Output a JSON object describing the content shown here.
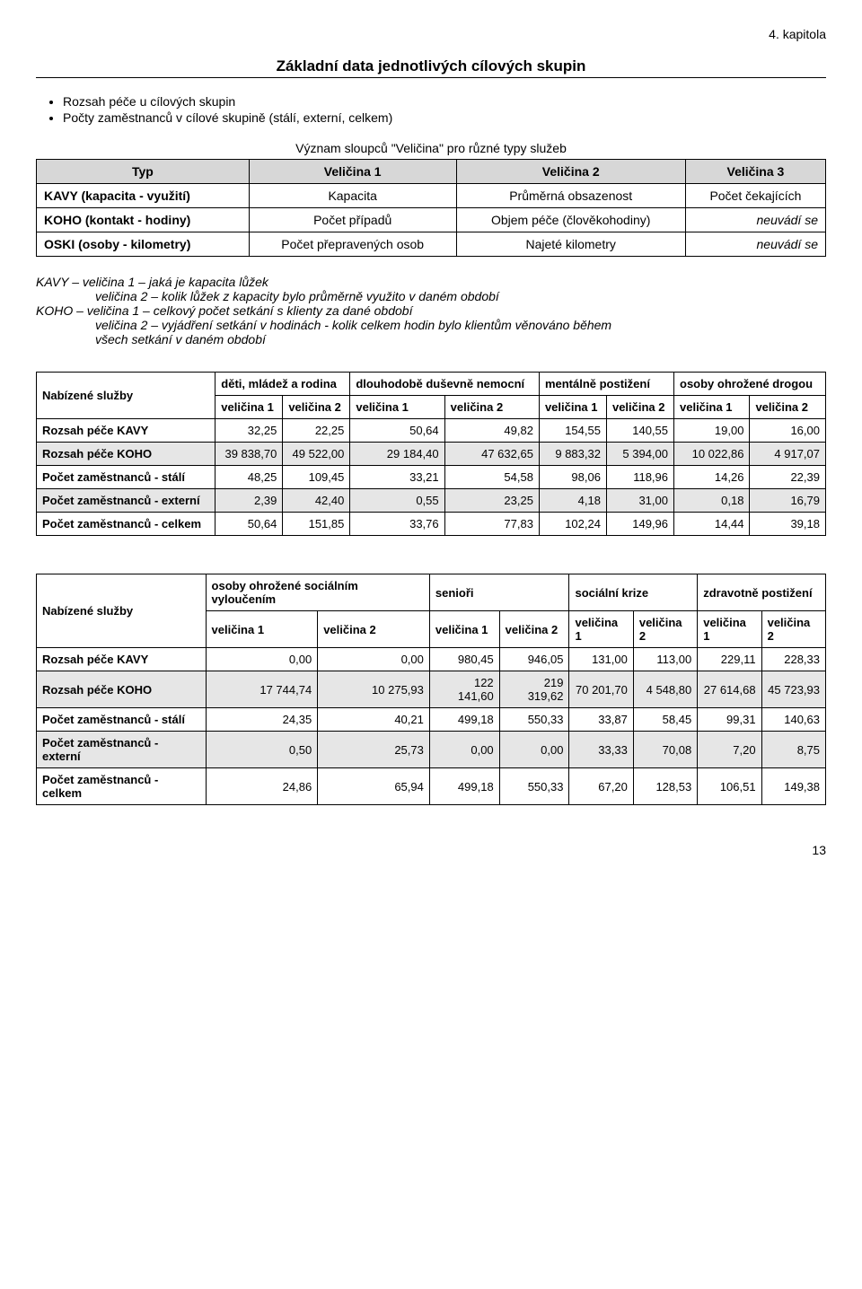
{
  "chapter": "4. kapitola",
  "title": "Základní data jednotlivých cílových skupin",
  "bullets": [
    "Rozsah péče u cílových skupin",
    "Počty zaměstnanců v cílové skupině (stálí, externí, celkem)"
  ],
  "defTable": {
    "caption": "Význam sloupců \"Veličina\" pro různé typy služeb",
    "header": [
      "Typ",
      "Veličina 1",
      "Veličina 2",
      "Veličina 3"
    ],
    "rows": [
      [
        "KAVY (kapacita - využití)",
        "Kapacita",
        "Průměrná obsazenost",
        "Počet čekajících"
      ],
      [
        "KOHO (kontakt - hodiny)",
        "Počet případů",
        "Objem péče (člověkohodiny)",
        "neuvádí se"
      ],
      [
        "OSKI (osoby - kilometry)",
        "Počet přepravených osob",
        "Najeté kilometry",
        "neuvádí se"
      ]
    ]
  },
  "legend": {
    "l1": "KAVY – veličina 1 – jaká je kapacita lůžek",
    "l2": "veličina 2 – kolik lůžek z kapacity bylo průměrně využito v daném období",
    "l3": "KOHO – veličina 1 – celkový počet setkání s klienty za dané období",
    "l4": "veličina 2 – vyjádření setkání v hodinách - kolik celkem hodin bylo klientům věnováno během",
    "l5": "všech setkání v daném období"
  },
  "dataTable1": {
    "rowHeader": "Nabízené služby",
    "groupHeaders": [
      "děti, mládež a rodina",
      "dlouhodobě duševně nemocní",
      "mentálně postižení",
      "osoby ohrožené drogou"
    ],
    "subHeaders": [
      "veličina 1",
      "veličina 2",
      "veličina 1",
      "veličina 2",
      "veličina 1",
      "veličina 2",
      "veličina 1",
      "veličina 2"
    ],
    "rows": [
      {
        "label": "Rozsah péče KAVY",
        "values": [
          "32,25",
          "22,25",
          "50,64",
          "49,82",
          "154,55",
          "140,55",
          "19,00",
          "16,00"
        ],
        "shade": false
      },
      {
        "label": "Rozsah péče KOHO",
        "values": [
          "39 838,70",
          "49 522,00",
          "29 184,40",
          "47 632,65",
          "9 883,32",
          "5 394,00",
          "10 022,86",
          "4 917,07"
        ],
        "shade": true
      },
      {
        "label": "Počet zaměstnanců - stálí",
        "values": [
          "48,25",
          "109,45",
          "33,21",
          "54,58",
          "98,06",
          "118,96",
          "14,26",
          "22,39"
        ],
        "shade": false
      },
      {
        "label": "Počet zaměstnanců - externí",
        "values": [
          "2,39",
          "42,40",
          "0,55",
          "23,25",
          "4,18",
          "31,00",
          "0,18",
          "16,79"
        ],
        "shade": true
      },
      {
        "label": "Počet zaměstnanců - celkem",
        "values": [
          "50,64",
          "151,85",
          "33,76",
          "77,83",
          "102,24",
          "149,96",
          "14,44",
          "39,18"
        ],
        "shade": false
      }
    ]
  },
  "dataTable2": {
    "rowHeader": "Nabízené služby",
    "groupHeaders": [
      "osoby ohrožené sociálním vyloučením",
      "senioři",
      "sociální krize",
      "zdravotně postižení"
    ],
    "subHeaders": [
      "veličina 1",
      "veličina 2",
      "veličina 1",
      "veličina 2",
      "veličina 1",
      "veličina 2",
      "veličina 1",
      "veličina 2"
    ],
    "rows": [
      {
        "label": "Rozsah péče KAVY",
        "values": [
          "0,00",
          "0,00",
          "980,45",
          "946,05",
          "131,00",
          "113,00",
          "229,11",
          "228,33"
        ],
        "shade": false
      },
      {
        "label": "Rozsah péče KOHO",
        "values": [
          "17 744,74",
          "10 275,93",
          "122 141,60",
          "219 319,62",
          "70 201,70",
          "4 548,80",
          "27 614,68",
          "45 723,93"
        ],
        "shade": true
      },
      {
        "label": "Počet zaměstnanců - stálí",
        "values": [
          "24,35",
          "40,21",
          "499,18",
          "550,33",
          "33,87",
          "58,45",
          "99,31",
          "140,63"
        ],
        "shade": false
      },
      {
        "label": "Počet zaměstnanců - externí",
        "values": [
          "0,50",
          "25,73",
          "0,00",
          "0,00",
          "33,33",
          "70,08",
          "7,20",
          "8,75"
        ],
        "shade": true
      },
      {
        "label": "Počet zaměstnanců - celkem",
        "values": [
          "24,86",
          "65,94",
          "499,18",
          "550,33",
          "67,20",
          "128,53",
          "106,51",
          "149,38"
        ],
        "shade": false
      }
    ]
  },
  "pageNumber": "13",
  "style": {
    "header_bg": "#d7d7d7",
    "shade_bg": "#e6e6e6",
    "border_color": "#000000",
    "font_family": "Arial"
  }
}
